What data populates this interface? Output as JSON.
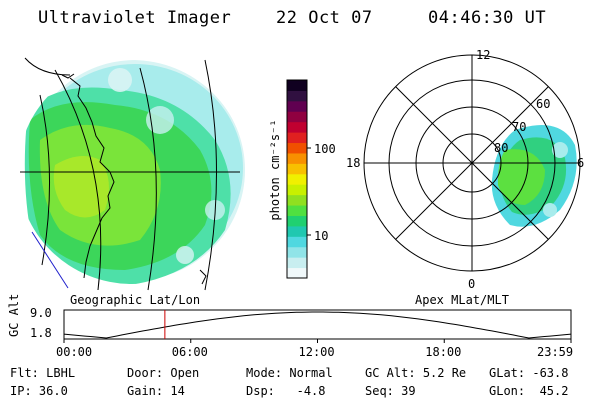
{
  "header": {
    "title": "Ultraviolet Imager",
    "date": "22 Oct 07",
    "time": "04:46:30 UT"
  },
  "colorbar": {
    "unit_label": "photon cm⁻²s⁻¹",
    "ticks": [
      "100",
      "10"
    ],
    "colors": [
      "#f0f8fa",
      "#c8eef0",
      "#90e4e8",
      "#50d8e0",
      "#20c8b0",
      "#20d070",
      "#50e040",
      "#90e020",
      "#c8f000",
      "#f0f000",
      "#f8c000",
      "#f89000",
      "#f05000",
      "#e02020",
      "#c00030",
      "#900040",
      "#600050",
      "#301040",
      "#100020"
    ]
  },
  "polar": {
    "mlt_labels": {
      "top": "12",
      "left": "18",
      "right": "6",
      "bottom": "0"
    },
    "lat_labels": [
      "60",
      "70",
      "80"
    ]
  },
  "map_labels": {
    "left": "Geographic Lat/Lon",
    "right": "Apex MLat/MLT"
  },
  "timeline": {
    "ylabel": "GC Alt",
    "yticks": [
      "9.0",
      "1.8"
    ],
    "xticks": [
      "00:00",
      "06:00",
      "12:00",
      "18:00",
      "23:59"
    ],
    "marker_time_hours": 4.775,
    "marker_color": "#cc0000"
  },
  "info": {
    "row1": [
      {
        "label": "Flt:",
        "value": "LBHL"
      },
      {
        "label": "Door:",
        "value": "Open"
      },
      {
        "label": "Mode:",
        "value": "Normal"
      },
      {
        "label": "GC Alt:",
        "value": "5.2 Re"
      },
      {
        "label": "GLat:",
        "value": "-63.8"
      }
    ],
    "row2": [
      {
        "label": "IP:",
        "value": "36.0"
      },
      {
        "label": "Gain:",
        "value": "14"
      },
      {
        "label": "Dsp:",
        "value": "-4.8"
      },
      {
        "label": "Seq:",
        "value": "39"
      },
      {
        "label": "GLon:",
        "value": "45.2"
      }
    ]
  }
}
